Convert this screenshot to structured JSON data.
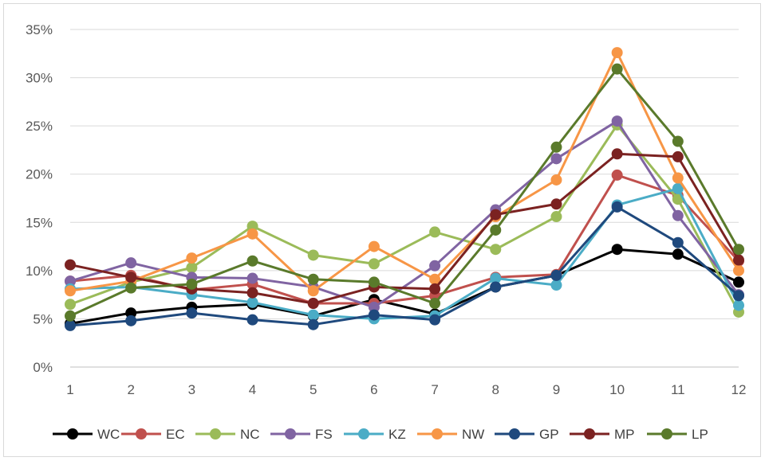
{
  "chart_data": {
    "type": "line",
    "categories": [
      "1",
      "2",
      "3",
      "4",
      "5",
      "6",
      "7",
      "8",
      "9",
      "10",
      "11",
      "12"
    ],
    "y_tick_labels": [
      "0%",
      "5%",
      "10%",
      "15%",
      "20%",
      "25%",
      "30%",
      "35%"
    ],
    "ylim": [
      0,
      35
    ],
    "y_unit": "percent",
    "grid": "horizontal",
    "legend_position": "bottom",
    "series": [
      {
        "name": "WC",
        "color": "#000000",
        "values": [
          4.5,
          5.6,
          6.2,
          6.5,
          5.3,
          7.0,
          5.5,
          8.3,
          9.5,
          12.2,
          11.7,
          8.8
        ]
      },
      {
        "name": "EC",
        "color": "#c0504d",
        "values": [
          8.9,
          9.5,
          8.0,
          8.6,
          6.6,
          6.6,
          7.4,
          9.3,
          9.6,
          19.9,
          17.8,
          11.0
        ]
      },
      {
        "name": "NC",
        "color": "#9bbb59",
        "values": [
          6.5,
          8.8,
          10.3,
          14.6,
          11.6,
          10.7,
          14.0,
          12.2,
          15.6,
          25.1,
          17.4,
          5.7
        ]
      },
      {
        "name": "FS",
        "color": "#8064a2",
        "values": [
          8.9,
          10.8,
          9.3,
          9.2,
          8.3,
          6.2,
          10.5,
          16.3,
          21.6,
          25.5,
          15.7,
          7.5
        ]
      },
      {
        "name": "KZ",
        "color": "#4bacc6",
        "values": [
          8.1,
          8.3,
          7.5,
          6.7,
          5.4,
          5.0,
          5.3,
          9.2,
          8.5,
          16.8,
          18.5,
          6.4
        ]
      },
      {
        "name": "NW",
        "color": "#f79646",
        "values": [
          7.9,
          8.9,
          11.3,
          13.8,
          7.9,
          12.5,
          9.1,
          15.6,
          19.4,
          32.6,
          19.6,
          10.0
        ]
      },
      {
        "name": "GP",
        "color": "#1f497d",
        "values": [
          4.3,
          4.8,
          5.6,
          4.9,
          4.4,
          5.4,
          4.9,
          8.3,
          9.5,
          16.6,
          12.9,
          7.4
        ]
      },
      {
        "name": "MP",
        "color": "#7b2221",
        "values": [
          10.6,
          9.3,
          8.1,
          7.7,
          6.6,
          8.3,
          8.1,
          15.8,
          16.9,
          22.1,
          21.8,
          11.1
        ]
      },
      {
        "name": "LP",
        "color": "#5a7a2b",
        "values": [
          5.3,
          8.2,
          8.6,
          11.0,
          9.1,
          8.8,
          6.6,
          14.2,
          22.8,
          30.9,
          23.4,
          12.2
        ]
      }
    ]
  }
}
